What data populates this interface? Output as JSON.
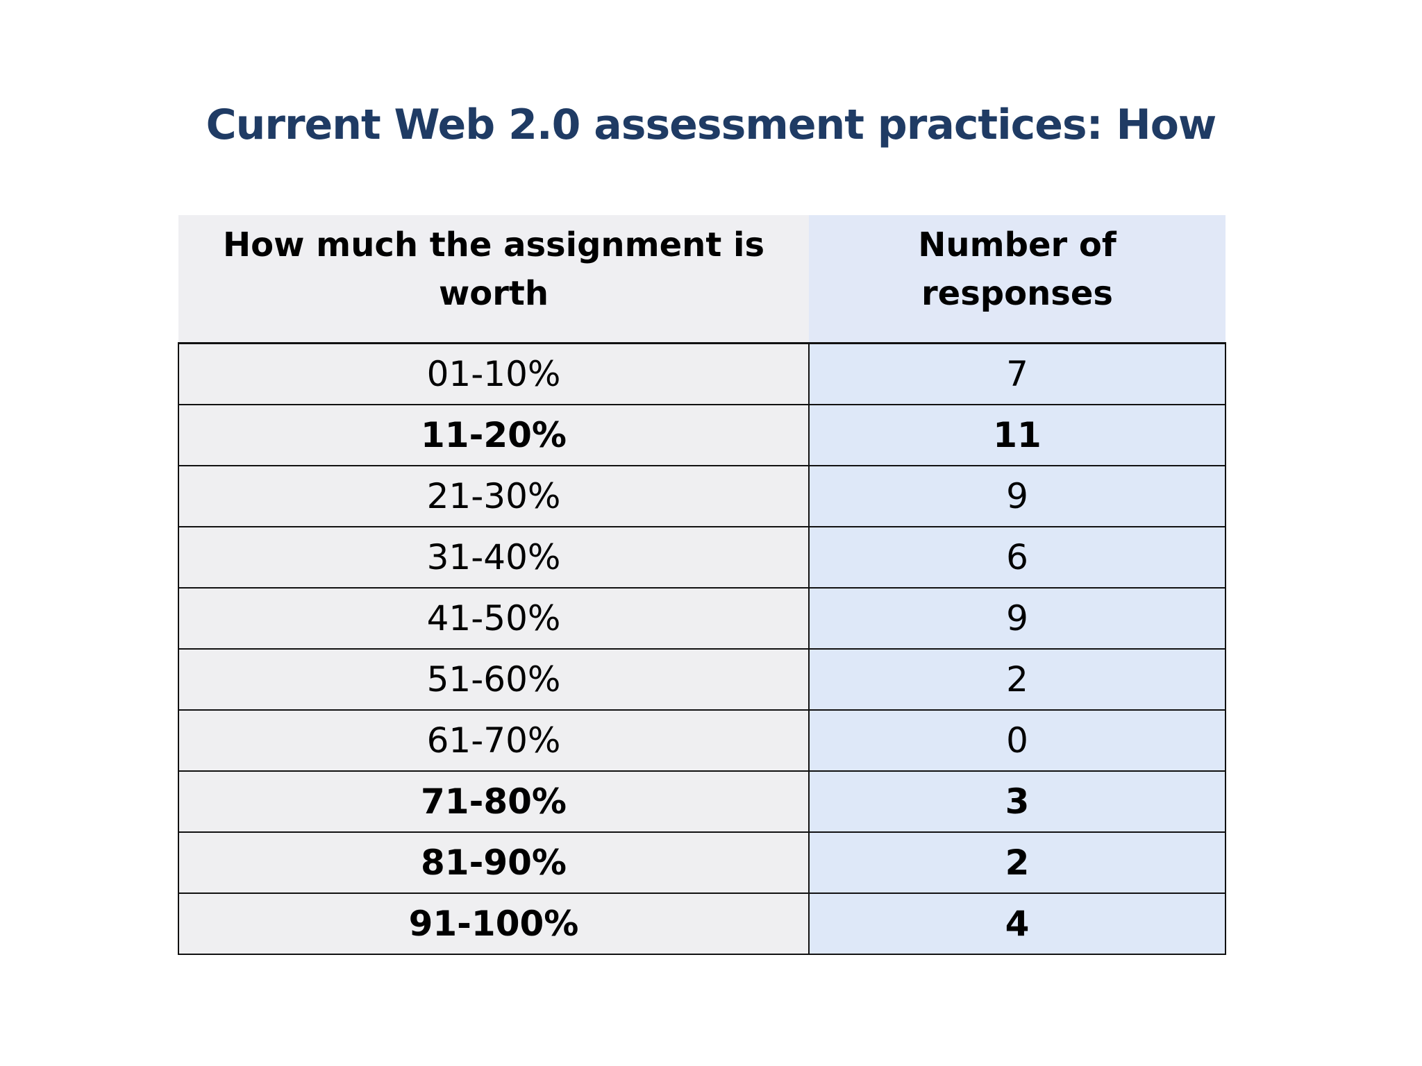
{
  "title": "Current Web 2.0 assessment practices: How",
  "table": {
    "headers": [
      "How much the assignment is worth",
      "Number of responses"
    ],
    "rows": [
      {
        "range": "01-10%",
        "count": "7",
        "bold": false
      },
      {
        "range": "11-20%",
        "count": "11",
        "bold": true
      },
      {
        "range": "21-30%",
        "count": "9",
        "bold": false
      },
      {
        "range": "31-40%",
        "count": "6",
        "bold": false
      },
      {
        "range": "41-50%",
        "count": "9",
        "bold": false
      },
      {
        "range": "51-60%",
        "count": "2",
        "bold": false
      },
      {
        "range": "61-70%",
        "count": "0",
        "bold": false
      },
      {
        "range": "71-80%",
        "count": "3",
        "bold": true
      },
      {
        "range": "81-90%",
        "count": "2",
        "bold": true
      },
      {
        "range": "91-100%",
        "count": "4",
        "bold": true
      }
    ]
  },
  "colors": {
    "title": "#1f3b64",
    "left_column_fill": "#efeff1",
    "right_column_fill": "#dee8f8"
  }
}
